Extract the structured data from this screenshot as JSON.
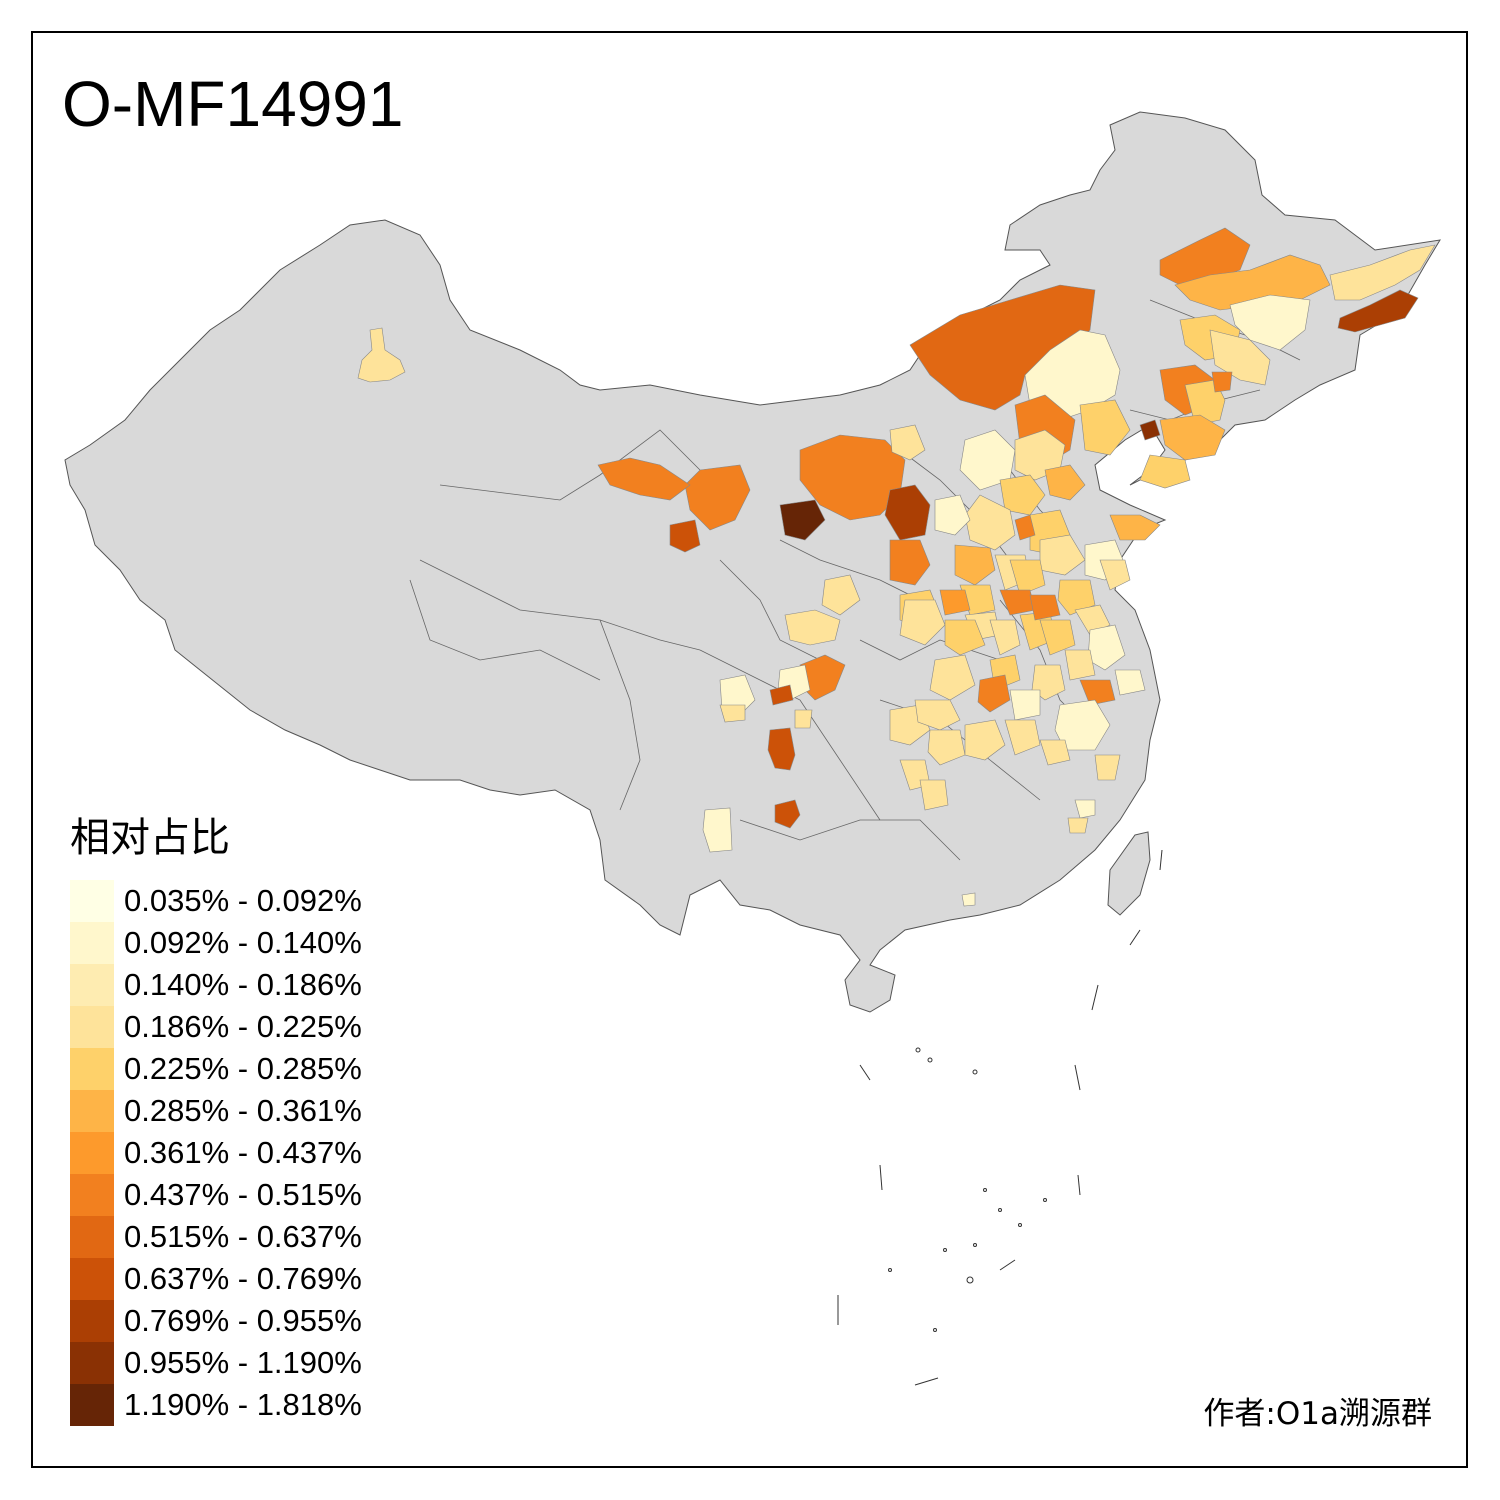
{
  "map": {
    "title": "O-MF14991",
    "credit": "作者:O1a溯源群",
    "base_color": "#d9d9d9",
    "border_color": "#555555"
  },
  "legend": {
    "title": "相对占比",
    "items": [
      {
        "label": "0.035% - 0.092%",
        "color": "#ffffe5"
      },
      {
        "label": "0.092% - 0.140%",
        "color": "#fff7cc"
      },
      {
        "label": "0.140% - 0.186%",
        "color": "#feecb1"
      },
      {
        "label": "0.186% - 0.225%",
        "color": "#fee39a"
      },
      {
        "label": "0.225% - 0.285%",
        "color": "#fed16a"
      },
      {
        "label": "0.285% - 0.361%",
        "color": "#feb447"
      },
      {
        "label": "0.361% - 0.437%",
        "color": "#fd9a2c"
      },
      {
        "label": "0.437% - 0.515%",
        "color": "#f2801f"
      },
      {
        "label": "0.515% - 0.637%",
        "color": "#e16813"
      },
      {
        "label": "0.637% - 0.769%",
        "color": "#cc5208"
      },
      {
        "label": "0.769% - 0.955%",
        "color": "#ab3f04"
      },
      {
        "label": "0.955% - 1.190%",
        "color": "#8a3104"
      },
      {
        "label": "1.190% - 1.818%",
        "color": "#662506"
      }
    ]
  }
}
